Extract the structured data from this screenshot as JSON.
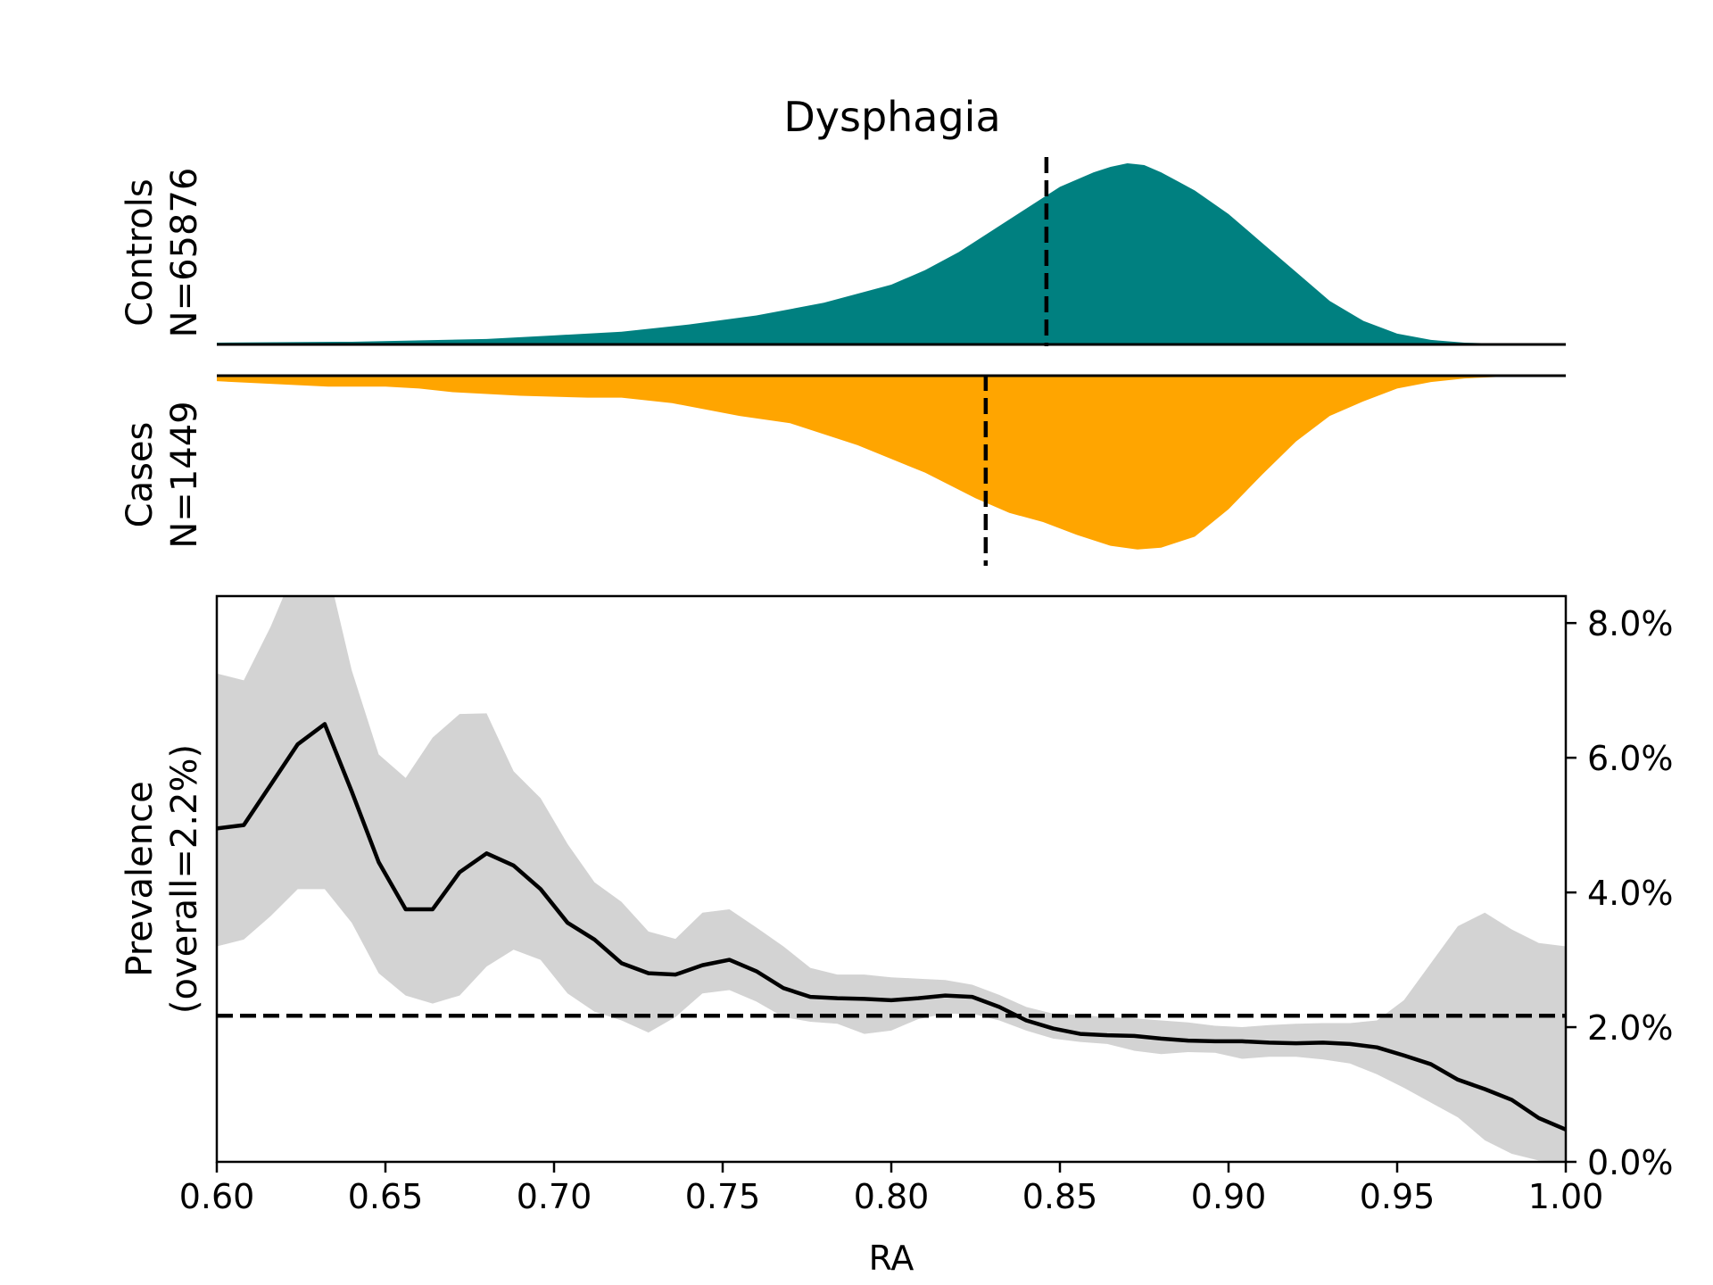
{
  "chart_data": {
    "type": "area",
    "title": "Dysphagia",
    "xlabel": "RA",
    "xlim": [
      0.6,
      1.0
    ],
    "x_ticks": [
      0.6,
      0.65,
      0.7,
      0.75,
      0.8,
      0.85,
      0.9,
      0.95,
      1.0
    ],
    "x_tick_labels": [
      "0.60",
      "0.65",
      "0.70",
      "0.75",
      "0.80",
      "0.85",
      "0.90",
      "0.95",
      "1.00"
    ],
    "controls": {
      "label_line1": "Controls",
      "label_line2": "N=65876",
      "color": "#008080",
      "median_ra": 0.846,
      "x": [
        0.6,
        0.64,
        0.68,
        0.7,
        0.72,
        0.74,
        0.76,
        0.78,
        0.8,
        0.81,
        0.82,
        0.83,
        0.84,
        0.85,
        0.86,
        0.865,
        0.87,
        0.875,
        0.88,
        0.885,
        0.89,
        0.9,
        0.91,
        0.92,
        0.93,
        0.94,
        0.95,
        0.96,
        0.97,
        0.98,
        1.0
      ],
      "density": [
        0.01,
        0.015,
        0.03,
        0.05,
        0.07,
        0.11,
        0.16,
        0.23,
        0.33,
        0.41,
        0.51,
        0.63,
        0.75,
        0.87,
        0.95,
        0.98,
        1.0,
        0.99,
        0.95,
        0.9,
        0.85,
        0.72,
        0.56,
        0.4,
        0.24,
        0.13,
        0.06,
        0.025,
        0.01,
        0.005,
        0.0
      ]
    },
    "cases": {
      "label_line1": "Cases",
      "label_line2": "N=1449",
      "color": "#FFA500",
      "median_ra": 0.828,
      "x": [
        0.6,
        0.633,
        0.65,
        0.66,
        0.67,
        0.69,
        0.71,
        0.72,
        0.735,
        0.755,
        0.77,
        0.79,
        0.81,
        0.825,
        0.835,
        0.845,
        0.855,
        0.865,
        0.873,
        0.88,
        0.89,
        0.9,
        0.91,
        0.92,
        0.93,
        0.94,
        0.95,
        0.96,
        0.97,
        0.98,
        1.0
      ],
      "density": [
        0.03,
        0.06,
        0.06,
        0.07,
        0.09,
        0.11,
        0.12,
        0.12,
        0.15,
        0.22,
        0.26,
        0.38,
        0.53,
        0.67,
        0.75,
        0.8,
        0.87,
        0.93,
        0.95,
        0.94,
        0.88,
        0.73,
        0.54,
        0.36,
        0.22,
        0.14,
        0.07,
        0.035,
        0.015,
        0.007,
        0.0
      ]
    },
    "prevalence": {
      "ylabel_line1": "Prevalence",
      "ylabel_line2": "(overall=2.2%)",
      "overall": 2.17,
      "ylim": [
        0,
        8.4
      ],
      "y_ticks": [
        0,
        2,
        4,
        6,
        8
      ],
      "y_tick_labels": [
        "0.0%",
        "2.0%",
        "4.0%",
        "6.0%",
        "8.0%"
      ],
      "ci_color": "#d3d3d3",
      "x": [
        0.6,
        0.608,
        0.616,
        0.624,
        0.632,
        0.64,
        0.648,
        0.656,
        0.664,
        0.672,
        0.68,
        0.688,
        0.696,
        0.704,
        0.712,
        0.72,
        0.728,
        0.736,
        0.744,
        0.752,
        0.76,
        0.768,
        0.776,
        0.784,
        0.792,
        0.8,
        0.808,
        0.816,
        0.824,
        0.832,
        0.84,
        0.848,
        0.856,
        0.864,
        0.872,
        0.88,
        0.888,
        0.896,
        0.904,
        0.912,
        0.92,
        0.928,
        0.936,
        0.944,
        0.952,
        0.96,
        0.968,
        0.976,
        0.984,
        0.992,
        1.0
      ],
      "value": [
        4.95,
        5.0,
        5.6,
        6.2,
        6.5,
        5.5,
        4.45,
        3.75,
        3.75,
        4.3,
        4.58,
        4.4,
        4.05,
        3.55,
        3.3,
        2.95,
        2.8,
        2.78,
        2.92,
        3.0,
        2.83,
        2.58,
        2.45,
        2.43,
        2.42,
        2.4,
        2.43,
        2.47,
        2.45,
        2.3,
        2.1,
        1.98,
        1.9,
        1.88,
        1.87,
        1.83,
        1.8,
        1.79,
        1.79,
        1.77,
        1.76,
        1.77,
        1.75,
        1.7,
        1.58,
        1.45,
        1.22,
        1.08,
        0.92,
        0.65,
        0.48
      ],
      "upper": [
        7.25,
        7.15,
        7.95,
        8.9,
        9.0,
        7.3,
        6.05,
        5.7,
        6.3,
        6.65,
        6.66,
        5.8,
        5.4,
        4.72,
        4.15,
        3.86,
        3.42,
        3.31,
        3.7,
        3.75,
        3.48,
        3.2,
        2.88,
        2.78,
        2.78,
        2.74,
        2.72,
        2.7,
        2.63,
        2.48,
        2.3,
        2.2,
        2.18,
        2.15,
        2.13,
        2.1,
        2.07,
        2.02,
        2.0,
        2.03,
        2.05,
        2.06,
        2.06,
        2.1,
        2.4,
        2.95,
        3.5,
        3.7,
        3.45,
        3.25,
        3.2
      ],
      "lower": [
        3.2,
        3.3,
        3.65,
        4.05,
        4.05,
        3.55,
        2.8,
        2.47,
        2.35,
        2.47,
        2.9,
        3.15,
        3.0,
        2.5,
        2.23,
        2.1,
        1.92,
        2.15,
        2.5,
        2.55,
        2.38,
        2.15,
        2.08,
        2.05,
        1.9,
        1.95,
        2.12,
        2.2,
        2.2,
        2.1,
        1.95,
        1.83,
        1.78,
        1.75,
        1.65,
        1.6,
        1.63,
        1.62,
        1.53,
        1.56,
        1.56,
        1.52,
        1.46,
        1.3,
        1.1,
        0.88,
        0.66,
        0.32,
        0.12,
        0.02,
        0.0
      ]
    }
  }
}
